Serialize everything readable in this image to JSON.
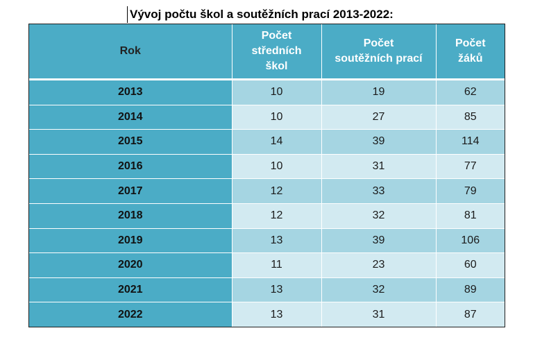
{
  "title": "Vývoj počtu škol a soutěžních prací 2013-2022:",
  "table": {
    "headers": {
      "year": "Rok",
      "schools_line1": "Počet",
      "schools_line2": "středních",
      "schools_line3": "škol",
      "works_line1": "Počet",
      "works_line2": "soutěžních prací",
      "students_line1": "Počet",
      "students_line2": "žáků"
    },
    "rows": [
      {
        "year": "2013",
        "schools": "10",
        "works": "19",
        "students": "62"
      },
      {
        "year": "2014",
        "schools": "10",
        "works": "27",
        "students": "85"
      },
      {
        "year": "2015",
        "schools": "14",
        "works": "39",
        "students": "114"
      },
      {
        "year": "2016",
        "schools": "10",
        "works": "31",
        "students": "77"
      },
      {
        "year": "2017",
        "schools": "12",
        "works": "33",
        "students": "79"
      },
      {
        "year": "2018",
        "schools": "12",
        "works": "32",
        "students": "81"
      },
      {
        "year": "2019",
        "schools": "13",
        "works": "39",
        "students": "106"
      },
      {
        "year": "2020",
        "schools": "11",
        "works": "23",
        "students": "60"
      },
      {
        "year": "2021",
        "schools": "13",
        "works": "32",
        "students": "89"
      },
      {
        "year": "2022",
        "schools": "13",
        "works": "31",
        "students": "87"
      }
    ]
  },
  "colors": {
    "header": "#4bacc6",
    "band_dark": "#a5d5e2",
    "band_light": "#d2eaf1"
  }
}
